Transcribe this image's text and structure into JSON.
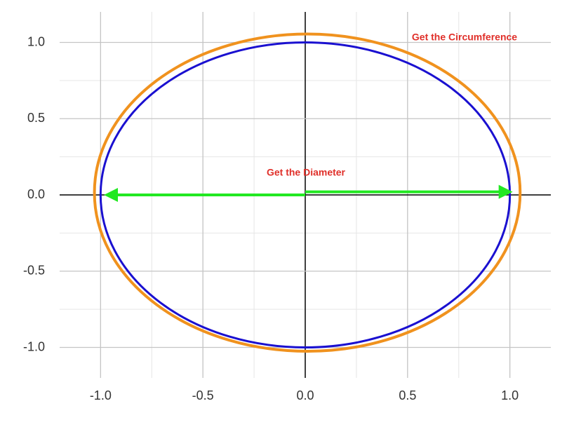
{
  "chart_data": {
    "type": "circles",
    "xlim": [
      -1.2,
      1.2
    ],
    "ylim": [
      -1.2,
      1.2
    ],
    "xticks": [
      {
        "value": -1,
        "label": "-1.0"
      },
      {
        "value": -0.5,
        "label": "-0.5"
      },
      {
        "value": 0,
        "label": "0.0"
      },
      {
        "value": 0.5,
        "label": "0.5"
      },
      {
        "value": 1,
        "label": "1.0"
      }
    ],
    "yticks": [
      {
        "value": -1,
        "label": "-1.0"
      },
      {
        "value": -0.5,
        "label": "-0.5"
      },
      {
        "value": 0,
        "label": "0.0"
      },
      {
        "value": 0.5,
        "label": "0.5"
      },
      {
        "value": 1,
        "label": "1.0"
      }
    ],
    "xminor": [
      -0.75,
      -0.25,
      0.25,
      0.75
    ],
    "yminor": [
      -0.75,
      -0.25,
      0.25,
      0.75
    ],
    "grid": true,
    "circles": [
      {
        "color": "#f0921e",
        "cx": 0.01,
        "cy": 0.015,
        "rx": 1.04,
        "ry": 1.04
      },
      {
        "color": "#1a10d0",
        "cx": 0,
        "cy": 0,
        "rx": 1,
        "ry": 1
      }
    ],
    "arrows": [
      {
        "color": "#22e822",
        "x": [
          0,
          -0.97
        ],
        "y": [
          0,
          0
        ]
      },
      {
        "color": "#22e822",
        "x": [
          0,
          1.0
        ],
        "y": [
          0.02,
          0.02
        ]
      }
    ],
    "annotations": [
      "Get the Circumference",
      "Get the Diameter"
    ]
  }
}
